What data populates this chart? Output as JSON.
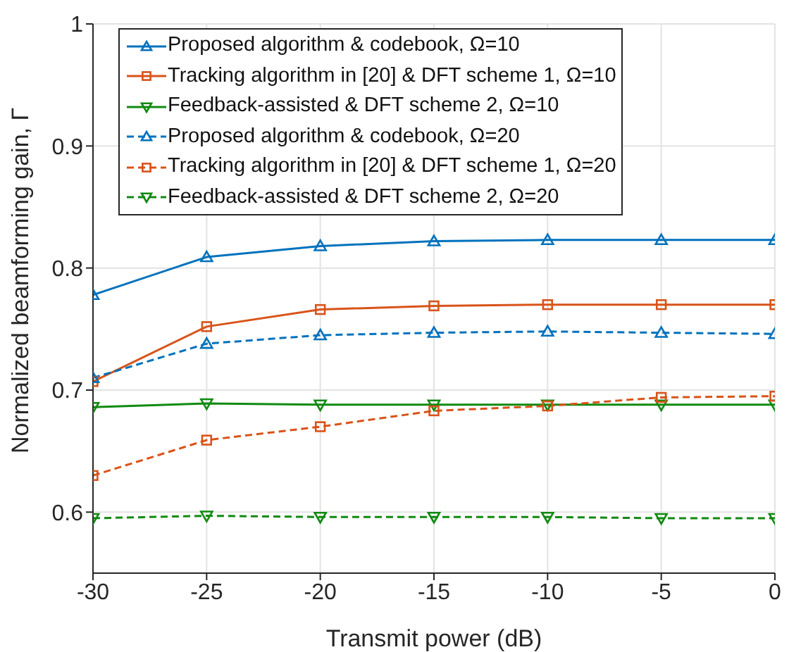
{
  "chart_data": {
    "type": "line",
    "xlabel": "Transmit power (dB)",
    "ylabel": "Normalized beamforming gain, Γ",
    "x": [
      -30,
      -25,
      -20,
      -15,
      -10,
      -5,
      0
    ],
    "series": [
      {
        "name": "Proposed algorithm & codebook, Ω=10",
        "color": "#0072bd",
        "marker": "triangle",
        "line_style": "solid",
        "values": [
          0.778,
          0.809,
          0.818,
          0.822,
          0.823,
          0.823,
          0.823
        ]
      },
      {
        "name": "Tracking algorithm in [20] & DFT scheme 1, Ω=10",
        "color": "#d95319",
        "marker": "square",
        "line_style": "solid",
        "values": [
          0.707,
          0.752,
          0.766,
          0.769,
          0.77,
          0.77,
          0.77
        ]
      },
      {
        "name": "Feedback-assisted & DFT scheme 2, Ω=10",
        "color": "#108a10",
        "marker": "triangle-down",
        "line_style": "solid",
        "values": [
          0.686,
          0.689,
          0.688,
          0.688,
          0.688,
          0.688,
          0.688
        ]
      },
      {
        "name": "Proposed algorithm & codebook, Ω=20",
        "color": "#0072bd",
        "marker": "triangle",
        "line_style": "dashed",
        "values": [
          0.71,
          0.738,
          0.745,
          0.747,
          0.748,
          0.747,
          0.746
        ]
      },
      {
        "name": "Tracking algorithm in [20] & DFT scheme 1, Ω=20",
        "color": "#d95319",
        "marker": "square",
        "line_style": "dashed",
        "values": [
          0.63,
          0.659,
          0.67,
          0.683,
          0.687,
          0.694,
          0.695
        ]
      },
      {
        "name": "Feedback-assisted & DFT scheme 2, Ω=20",
        "color": "#108a10",
        "marker": "triangle-down",
        "line_style": "dashed",
        "values": [
          0.595,
          0.597,
          0.596,
          0.596,
          0.596,
          0.595,
          0.595
        ]
      }
    ],
    "xlim": [
      -30,
      0
    ],
    "xticks": [
      -30,
      -25,
      -20,
      -15,
      -10,
      -5,
      0
    ],
    "ylim": [
      0.55,
      1
    ],
    "yticks": [
      0.6,
      0.7,
      0.8,
      0.9,
      1
    ],
    "grid": true,
    "legend": "top left"
  }
}
